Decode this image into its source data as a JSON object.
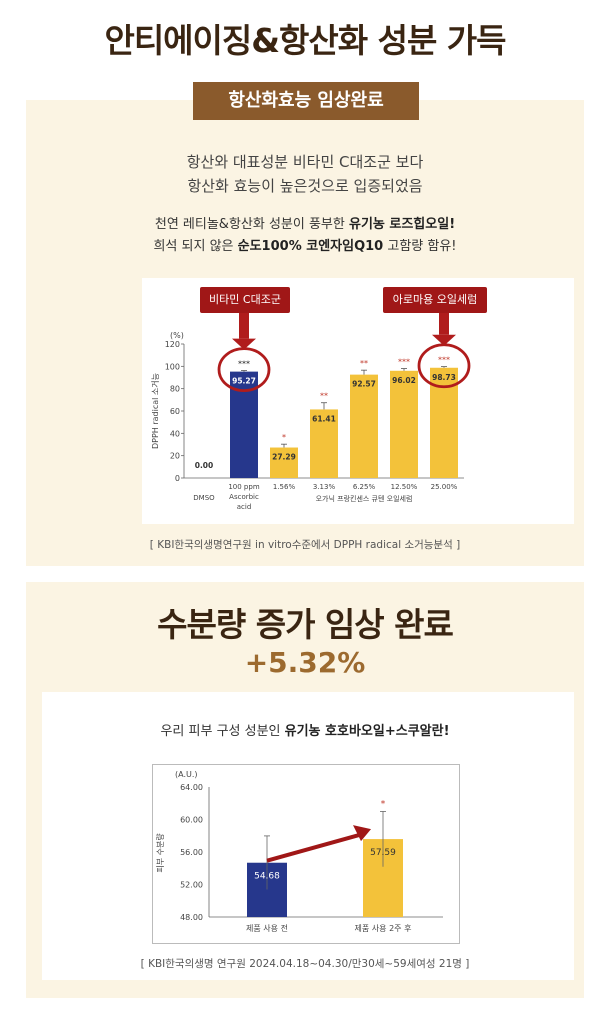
{
  "title": "안티에이징&항산화 성분 가득",
  "section1": {
    "badge": "항산화효능 임상완료",
    "line1": "항산와 대표성분 비타민 C대조군 보다",
    "line2": "항산화 효능이 높은것으로 입증되었음",
    "line3_pre": "천연 레티놀&항산화 성분이 풍부한 ",
    "line3_bold": "유기농 로즈힙오일!",
    "line4_pre": "희석 되지 않은 ",
    "line4_bold": "순도100% 코엔자임Q10",
    "line4_post": " 고함량 함유!",
    "callout_left": "비타민 C대조군",
    "callout_right": "아로마용 오일세럼",
    "caption": "[ KBI한국의생명연구원 in vitro수준에서 DPPH radical 소거능분석 ]"
  },
  "section2": {
    "title": "수분량 증가 임상 완료",
    "percent": "+5.32%",
    "line_pre": "우리 피부 구성 성분인 ",
    "line_bold": "유기농 호호바오일+스쿠알란!",
    "caption": "[ KBI한국의생명 연구원   2024.04.18~04.30/만30세~59세여성 21명 ]"
  },
  "chart_data": [
    {
      "type": "bar",
      "unit": "(%)",
      "ylabel": "DPPH radical 소거능",
      "ylim": [
        0,
        120
      ],
      "yticks": [
        0,
        20,
        40,
        60,
        80,
        100,
        120
      ],
      "group_label": "오가닉 프랑킨센스 큐텐 오일세럼",
      "categories": [
        "DMSO",
        "100 ppm Ascorbic acid",
        "1.56%",
        "3.13%",
        "6.25%",
        "12.50%",
        "25.00%"
      ],
      "values": [
        0.0,
        95.27,
        27.29,
        61.41,
        92.57,
        96.02,
        98.73
      ],
      "value_labels": [
        "0.00",
        "95.27",
        "27.29",
        "61.41",
        "92.57",
        "96.02",
        "98.73"
      ],
      "errors": [
        0,
        1,
        3,
        6,
        4,
        2,
        1
      ],
      "significance": [
        "",
        "***",
        "*",
        "**",
        "**",
        "***",
        "***"
      ],
      "highlighted": [
        "100 ppm Ascorbic acid",
        "25.00%"
      ],
      "colors": {
        "control": "#26378c",
        "sample": "#f3c23a",
        "highlight": "#b01c1c"
      }
    },
    {
      "type": "bar",
      "unit": "(A.U.)",
      "ylabel": "피부 수분량",
      "ylim": [
        48,
        64
      ],
      "yticks": [
        "48.00",
        "52.00",
        "56.00",
        "60.00",
        "64.00"
      ],
      "categories": [
        "제품 사용 전",
        "제품 사용 2주 후"
      ],
      "values": [
        54.68,
        57.59
      ],
      "value_labels": [
        "54.68",
        "57.59"
      ],
      "errors": [
        3.3,
        3.4
      ],
      "significance": [
        "",
        "*"
      ],
      "colors": {
        "before": "#26378c",
        "after": "#f3c23a",
        "arrow": "#a01717"
      }
    }
  ]
}
